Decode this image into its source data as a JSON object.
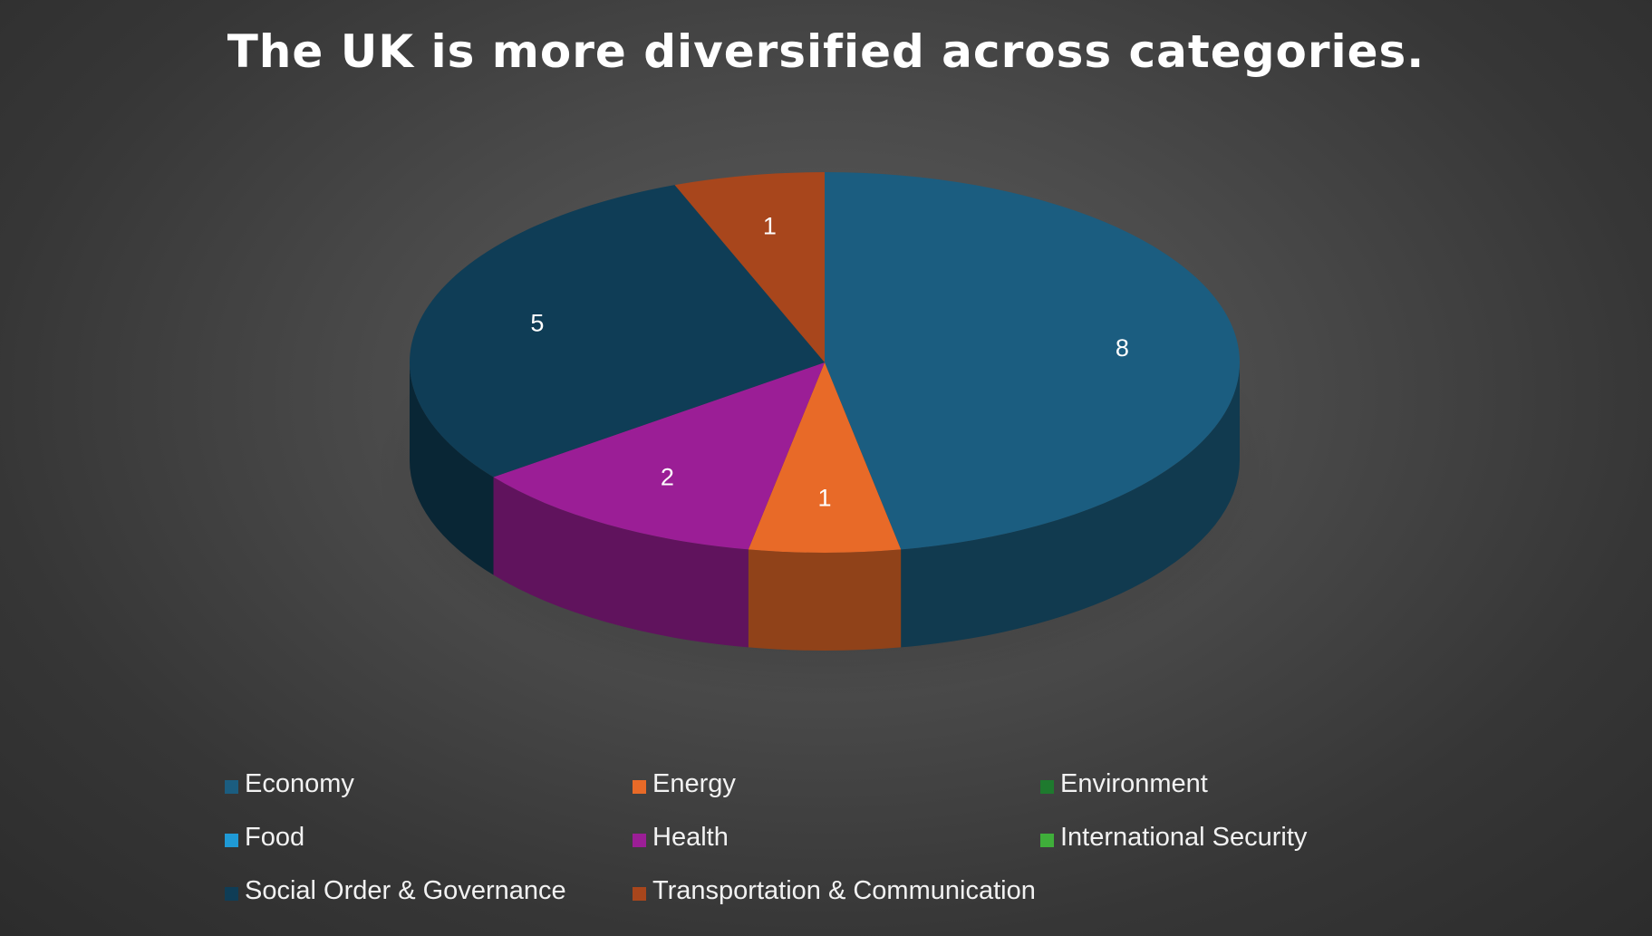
{
  "chart_data": {
    "type": "pie",
    "title": "The UK is more diversified across categories.",
    "categories": [
      "Economy",
      "Energy",
      "Environment",
      "Food",
      "Health",
      "International Security",
      "Social Order & Governance",
      "Transportation & Communication"
    ],
    "values": [
      8,
      1,
      0,
      0,
      2,
      0,
      5,
      1
    ],
    "colors": [
      "#1b5d80",
      "#e86a28",
      "#1e7a2e",
      "#1f9ad6",
      "#9b1e96",
      "#3fae3a",
      "#0f3d56",
      "#a8461c"
    ],
    "legend_position": "bottom",
    "data_labels": true,
    "style": "3d"
  }
}
